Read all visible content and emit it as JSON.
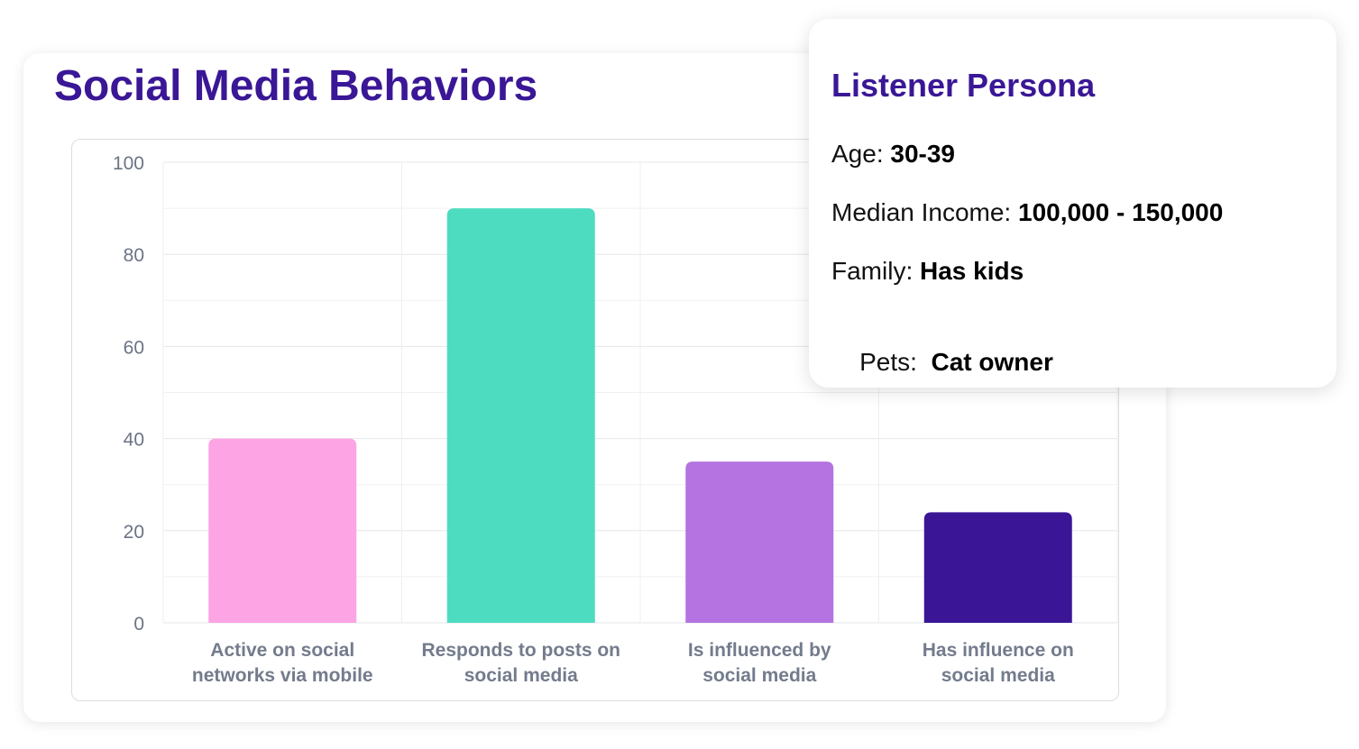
{
  "title": "Social Media Behaviors",
  "chart_data": {
    "type": "bar",
    "title": "Social Media Behaviors",
    "xlabel": "",
    "ylabel": "",
    "ylim": [
      0,
      100
    ],
    "yticks": [
      0,
      20,
      40,
      60,
      80,
      100
    ],
    "grid": true,
    "categories": [
      [
        "Active on social",
        "networks via mobile"
      ],
      [
        "Responds to posts on",
        "social media"
      ],
      [
        "Is influenced by",
        "social media"
      ],
      [
        "Has influence on",
        "social media"
      ]
    ],
    "values": [
      40,
      90,
      35,
      24
    ],
    "colors": [
      "#fca4e4",
      "#4edcc1",
      "#b473e0",
      "#3a1696"
    ]
  },
  "persona": {
    "title": "Listener Persona",
    "rows": [
      {
        "label": "Age: ",
        "value": "30-39"
      },
      {
        "label": "Median Income: ",
        "value": "100,000 - 150,000"
      },
      {
        "label": "Family: ",
        "value": "Has kids"
      },
      {
        "label": "Pets:  ",
        "value": "Cat owner"
      }
    ]
  }
}
